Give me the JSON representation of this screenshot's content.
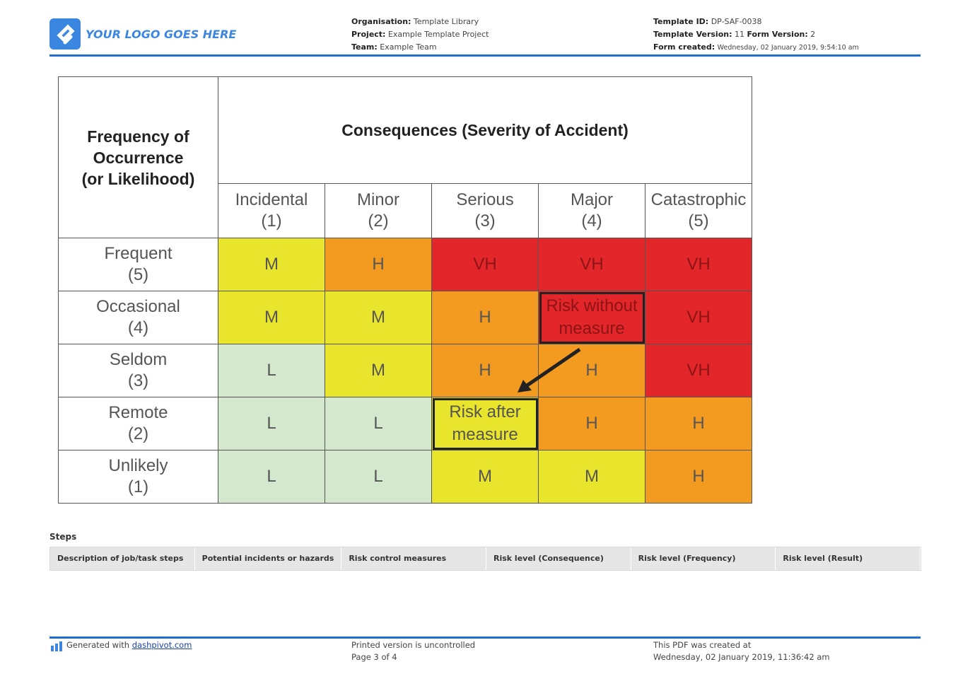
{
  "header": {
    "logo_text": "YOUR LOGO GOES HERE",
    "organisation": {
      "label": "Organisation:",
      "value": "Template Library"
    },
    "project": {
      "label": "Project:",
      "value": "Example Template Project"
    },
    "team": {
      "label": "Team:",
      "value": "Example Team"
    },
    "template_id": {
      "label": "Template ID:",
      "value": "DP-SAF-0038"
    },
    "template_version": {
      "label": "Template Version:",
      "value": "11"
    },
    "form_version": {
      "label": "Form Version:",
      "value": "2"
    },
    "form_created": {
      "label": "Form created:",
      "value": "Wednesday, 02 January 2019, 9:54:10 am"
    }
  },
  "matrix": {
    "corner": [
      "Frequency of",
      "Occurrence",
      "(or Likelihood)"
    ],
    "title": "Consequences (Severity of Accident)",
    "columns": [
      {
        "name": "Incidental",
        "rank": "(1)"
      },
      {
        "name": "Minor",
        "rank": "(2)"
      },
      {
        "name": "Serious",
        "rank": "(3)"
      },
      {
        "name": "Major",
        "rank": "(4)"
      },
      {
        "name": "Catastrophic",
        "rank": "(5)"
      }
    ],
    "rows": [
      {
        "name": "Frequent",
        "rank": "(5)",
        "cells": [
          "M",
          "H",
          "VH",
          "VH",
          "VH"
        ]
      },
      {
        "name": "Occasional",
        "rank": "(4)",
        "cells": [
          "M",
          "M",
          "H",
          [
            "Risk without",
            "measure"
          ],
          "VH"
        ]
      },
      {
        "name": "Seldom",
        "rank": "(3)",
        "cells": [
          "L",
          "M",
          "H",
          "H",
          "VH"
        ]
      },
      {
        "name": "Remote",
        "rank": "(2)",
        "cells": [
          "L",
          "L",
          [
            "Risk after",
            "measure"
          ],
          "H",
          "H"
        ]
      },
      {
        "name": "Unlikely",
        "rank": "(1)",
        "cells": [
          "L",
          "L",
          "M",
          "M",
          "H"
        ]
      }
    ]
  },
  "steps": {
    "title": "Steps",
    "columns": [
      "Description of job/task steps",
      "Potential incidents or hazards",
      "Risk control measures",
      "Risk level (Consequence)",
      "Risk level (Frequency)",
      "Risk level (Result)"
    ]
  },
  "footer": {
    "generated": "Generated with",
    "link": "dashpivot.com",
    "printed": "Printed version is uncontrolled",
    "page": "Page 3 of 4",
    "created_label": "This PDF was created at",
    "created_value": "Wednesday, 02 January 2019, 11:36:42 am"
  }
}
